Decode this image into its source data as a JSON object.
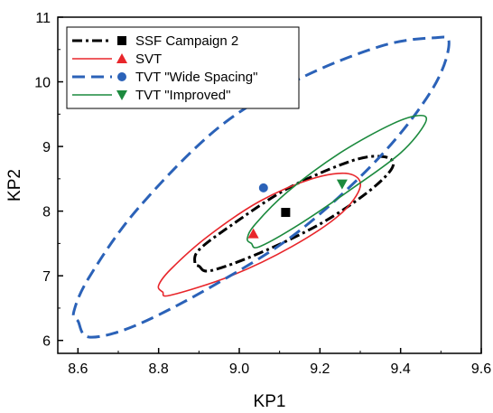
{
  "chart_data": {
    "type": "scatter",
    "xlabel": "KP1",
    "ylabel": "KP2",
    "xlim": [
      8.55,
      9.6
    ],
    "ylim": [
      5.8,
      11.0
    ],
    "xticks": [
      8.6,
      8.8,
      9.0,
      9.2,
      9.4,
      9.6
    ],
    "xtick_labels": [
      "8.6",
      "8.8",
      "9.0",
      "9.2",
      "9.4",
      "9.6"
    ],
    "yticks": [
      6,
      7,
      8,
      9,
      10,
      11
    ],
    "ytick_labels": [
      "6",
      "7",
      "8",
      "9",
      "10",
      "11"
    ],
    "grid": false,
    "legend_position": "top-left",
    "series": [
      {
        "name": "SSF Campaign 2",
        "color": "#000000",
        "line_style": "dash-dot",
        "marker": "square",
        "point": [
          9.115,
          7.98
        ],
        "ellipse": [
          [
            8.9,
            7.15
          ],
          [
            8.93,
            7.08
          ],
          [
            9.05,
            7.35
          ],
          [
            9.2,
            7.8
          ],
          [
            9.32,
            8.3
          ],
          [
            9.38,
            8.68
          ],
          [
            9.36,
            8.84
          ],
          [
            9.28,
            8.78
          ],
          [
            9.12,
            8.35
          ],
          [
            8.98,
            7.78
          ],
          [
            8.9,
            7.4
          ],
          [
            8.89,
            7.2
          ],
          [
            8.9,
            7.15
          ]
        ]
      },
      {
        "name": "SVT",
        "color": "#e8262b",
        "line_style": "solid",
        "marker": "triangle-up",
        "point": [
          9.035,
          7.65
        ],
        "ellipse": [
          [
            8.81,
            6.75
          ],
          [
            8.83,
            6.7
          ],
          [
            8.98,
            7.0
          ],
          [
            9.13,
            7.45
          ],
          [
            9.25,
            7.95
          ],
          [
            9.3,
            8.38
          ],
          [
            9.27,
            8.58
          ],
          [
            9.18,
            8.5
          ],
          [
            9.05,
            8.15
          ],
          [
            8.92,
            7.6
          ],
          [
            8.83,
            7.1
          ],
          [
            8.8,
            6.85
          ],
          [
            8.81,
            6.75
          ]
        ]
      },
      {
        "name": "TVT \"Wide Spacing\"",
        "color": "#2b62b8",
        "line_style": "dashed",
        "marker": "circle",
        "point": [
          9.06,
          8.36
        ],
        "ellipse": [
          [
            8.6,
            6.3
          ],
          [
            8.63,
            6.05
          ],
          [
            8.75,
            6.25
          ],
          [
            8.95,
            6.9
          ],
          [
            9.15,
            7.7
          ],
          [
            9.35,
            8.85
          ],
          [
            9.48,
            9.9
          ],
          [
            9.52,
            10.6
          ],
          [
            9.48,
            10.68
          ],
          [
            9.35,
            10.55
          ],
          [
            9.15,
            10.05
          ],
          [
            8.95,
            9.3
          ],
          [
            8.75,
            8.05
          ],
          [
            8.63,
            7.0
          ],
          [
            8.59,
            6.45
          ],
          [
            8.6,
            6.3
          ]
        ]
      },
      {
        "name": "TVT \"Improved\"",
        "color": "#1c8a3e",
        "line_style": "solid",
        "marker": "triangle-down",
        "point": [
          9.255,
          8.42
        ],
        "ellipse": [
          [
            9.03,
            7.5
          ],
          [
            9.05,
            7.45
          ],
          [
            9.15,
            7.8
          ],
          [
            9.28,
            8.35
          ],
          [
            9.4,
            8.9
          ],
          [
            9.46,
            9.35
          ],
          [
            9.45,
            9.48
          ],
          [
            9.38,
            9.35
          ],
          [
            9.25,
            8.9
          ],
          [
            9.12,
            8.3
          ],
          [
            9.04,
            7.8
          ],
          [
            9.02,
            7.58
          ],
          [
            9.03,
            7.5
          ]
        ]
      }
    ]
  }
}
